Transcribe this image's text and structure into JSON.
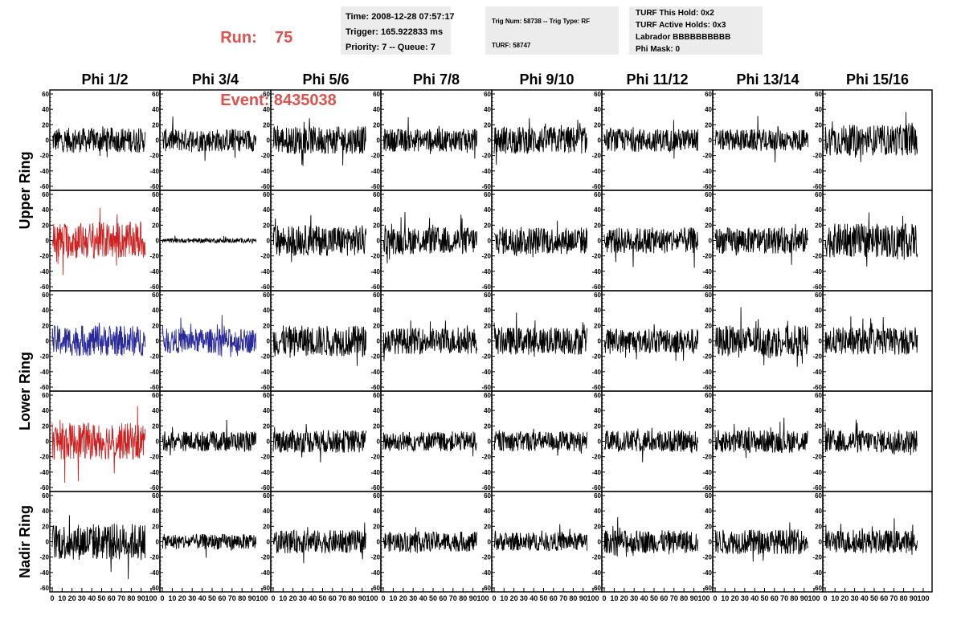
{
  "header": {
    "run_label": "Run:",
    "run_value": "75",
    "event_label": "Event:",
    "event_value": "8435038",
    "accent_color": "#d9534f"
  },
  "info_panels": [
    [
      "Time: 2008-12-28 07:57:17",
      "Trigger: 165.922833 ms",
      "Priority: 7 -- Queue: 7"
    ],
    [
      "Trig Num: 58738 -- Trig Type: RF",
      "TURF: 58747"
    ],
    [
      "TURF This Hold: 0x2",
      "TURF Active Holds: 0x3",
      "Labrador BBBBBBBBBB",
      "Phi Mask: 0"
    ]
  ],
  "chart_data": {
    "type": "line",
    "title": "",
    "columns": [
      "Phi 1/2",
      "Phi 3/4",
      "Phi 5/6",
      "Phi 7/8",
      "Phi 9/10",
      "Phi 11/12",
      "Phi 13/14",
      "Phi 15/16"
    ],
    "ring_labels": [
      "Upper Ring",
      "Lower Ring",
      "Nadir Ring"
    ],
    "ylim": [
      -60,
      60
    ],
    "xlim": [
      0,
      100
    ],
    "yticks": [
      -60,
      -40,
      -20,
      0,
      20,
      40,
      60
    ],
    "xticks": [
      0,
      10,
      20,
      30,
      40,
      50,
      60,
      70,
      80,
      90,
      100
    ],
    "x_tick_labels": [
      "0",
      "10",
      "20",
      "30",
      "40",
      "50",
      "60",
      "70",
      "80",
      "90",
      "100"
    ],
    "waveform_samples": 260,
    "series_colors": {
      "default": "#000000",
      "hpol": "#cc2222",
      "vpol": "#2a2a9a"
    },
    "panels": [
      [
        {
          "amp": 16,
          "color": "#000000"
        },
        {
          "amp": 15,
          "color": "#000000"
        },
        {
          "amp": 18,
          "color": "#000000"
        },
        {
          "amp": 15,
          "color": "#000000"
        },
        {
          "amp": 18,
          "color": "#000000"
        },
        {
          "amp": 15,
          "color": "#000000"
        },
        {
          "amp": 14,
          "color": "#000000"
        },
        {
          "amp": 20,
          "color": "#000000"
        }
      ],
      [
        {
          "amp": 24,
          "color": "#cc2222"
        },
        {
          "amp": 3,
          "color": "#000000"
        },
        {
          "amp": 20,
          "color": "#000000"
        },
        {
          "amp": 18,
          "color": "#000000"
        },
        {
          "amp": 18,
          "color": "#000000"
        },
        {
          "amp": 17,
          "color": "#000000"
        },
        {
          "amp": 17,
          "color": "#000000"
        },
        {
          "amp": 22,
          "color": "#000000"
        }
      ],
      [
        {
          "amp": 20,
          "color": "#2a2a9a"
        },
        {
          "amp": 16,
          "color": "#2a2a9a"
        },
        {
          "amp": 20,
          "color": "#000000"
        },
        {
          "amp": 17,
          "color": "#000000"
        },
        {
          "amp": 18,
          "color": "#000000"
        },
        {
          "amp": 16,
          "color": "#000000"
        },
        {
          "amp": 20,
          "color": "#000000"
        },
        {
          "amp": 18,
          "color": "#000000"
        }
      ],
      [
        {
          "amp": 24,
          "color": "#cc2222"
        },
        {
          "amp": 13,
          "color": "#000000"
        },
        {
          "amp": 15,
          "color": "#000000"
        },
        {
          "amp": 13,
          "color": "#000000"
        },
        {
          "amp": 13,
          "color": "#000000"
        },
        {
          "amp": 14,
          "color": "#000000"
        },
        {
          "amp": 15,
          "color": "#000000"
        },
        {
          "amp": 15,
          "color": "#000000"
        }
      ],
      [
        {
          "amp": 24,
          "color": "#000000"
        },
        {
          "amp": 10,
          "color": "#000000"
        },
        {
          "amp": 15,
          "color": "#000000"
        },
        {
          "amp": 13,
          "color": "#000000"
        },
        {
          "amp": 12,
          "color": "#000000"
        },
        {
          "amp": 15,
          "color": "#000000"
        },
        {
          "amp": 16,
          "color": "#000000"
        },
        {
          "amp": 15,
          "color": "#000000"
        }
      ]
    ]
  }
}
